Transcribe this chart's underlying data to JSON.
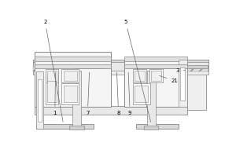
{
  "bg": "white",
  "lc": "#888888",
  "lc2": "#aaaaaa",
  "fc_light": "#f0f0f0",
  "fc_mid": "#e0e0e0",
  "fc_dark": "#d0d0d0",
  "lw": 0.5,
  "fs": 5.0
}
